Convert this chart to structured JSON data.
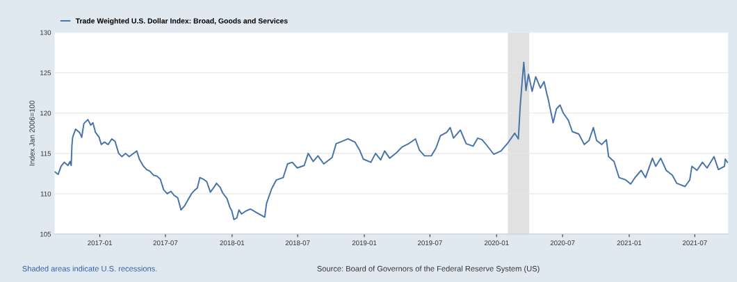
{
  "chart_data": {
    "type": "line",
    "ylabel": "Index Jan 2006=100",
    "ylim": [
      105,
      130
    ],
    "yticks": [
      105,
      110,
      115,
      120,
      125,
      130
    ],
    "xlim": [
      "2016-08-29",
      "2021-10-01"
    ],
    "xticks": [
      "2017-01",
      "2017-07",
      "2018-01",
      "2018-07",
      "2019-01",
      "2019-07",
      "2020-01",
      "2020-07",
      "2021-01",
      "2021-07"
    ],
    "grid": "y",
    "legend": "top left",
    "marker": "none",
    "line_style": "solid",
    "bands": [
      {
        "axis": "x",
        "from": "2020-02-01",
        "to": "2020-03-31",
        "color": "#e1e1e1"
      }
    ],
    "annotations": [
      "Shaded areas indicate U.S. recessions.",
      "Source: Board of Governors of the Federal Reserve System (US)"
    ],
    "series": [
      {
        "name": "Trade Weighted U.S. Dollar Index: Broad, Goods and Services",
        "color": "#4572a7",
        "x": [
          "2016-08-30",
          "2016-09-08",
          "2016-09-16",
          "2016-09-25",
          "2016-10-05",
          "2016-10-11",
          "2016-10-14",
          "2016-10-16",
          "2016-10-18",
          "2016-10-26",
          "2016-11-06",
          "2016-11-12",
          "2016-11-18",
          "2016-11-29",
          "2016-12-07",
          "2016-12-13",
          "2016-12-20",
          "2016-12-30",
          "2017-01-05",
          "2017-01-14",
          "2017-01-24",
          "2017-02-03",
          "2017-02-12",
          "2017-02-22",
          "2017-03-03",
          "2017-03-13",
          "2017-03-23",
          "2017-04-01",
          "2017-04-13",
          "2017-04-20",
          "2017-04-30",
          "2017-05-10",
          "2017-05-19",
          "2017-05-29",
          "2017-06-07",
          "2017-06-17",
          "2017-06-26",
          "2017-07-06",
          "2017-07-16",
          "2017-07-25",
          "2017-08-04",
          "2017-08-13",
          "2017-08-23",
          "2017-09-02",
          "2017-09-11",
          "2017-09-21",
          "2017-09-27",
          "2017-10-04",
          "2017-10-14",
          "2017-10-23",
          "2017-11-02",
          "2017-11-12",
          "2017-11-19",
          "2017-11-29",
          "2017-12-06",
          "2017-12-18",
          "2017-12-26",
          "2017-12-31",
          "2018-01-06",
          "2018-01-14",
          "2018-01-20",
          "2018-01-27",
          "2018-02-06",
          "2018-02-15",
          "2018-02-21",
          "2018-03-12",
          "2018-04-01",
          "2018-04-06",
          "2018-04-20",
          "2018-05-03",
          "2018-05-22",
          "2018-06-03",
          "2018-06-16",
          "2018-06-30",
          "2018-07-19",
          "2018-07-30",
          "2018-08-13",
          "2018-08-26",
          "2018-09-11",
          "2018-10-04",
          "2018-10-15",
          "2018-11-01",
          "2018-11-17",
          "2018-12-06",
          "2018-12-19",
          "2018-12-29",
          "2019-01-19",
          "2019-02-01",
          "2019-02-15",
          "2019-02-26",
          "2019-03-12",
          "2019-03-31",
          "2019-04-15",
          "2019-05-03",
          "2019-05-22",
          "2019-06-02",
          "2019-06-16",
          "2019-07-05",
          "2019-07-18",
          "2019-07-30",
          "2019-08-16",
          "2019-08-26",
          "2019-09-04",
          "2019-09-23",
          "2019-10-09",
          "2019-10-28",
          "2019-11-10",
          "2019-11-22",
          "2019-12-05",
          "2019-12-24",
          "2020-01-13",
          "2020-02-01",
          "2020-02-20",
          "2020-03-01",
          "2020-03-06",
          "2020-03-12",
          "2020-03-16",
          "2020-03-22",
          "2020-03-29",
          "2020-04-08",
          "2020-04-18",
          "2020-05-01",
          "2020-05-11",
          "2020-05-18",
          "2020-05-22",
          "2020-06-05",
          "2020-06-14",
          "2020-06-24",
          "2020-07-03",
          "2020-07-17",
          "2020-07-28",
          "2020-08-15",
          "2020-08-30",
          "2020-09-12",
          "2020-09-24",
          "2020-10-03",
          "2020-10-17",
          "2020-10-30",
          "2020-11-05",
          "2020-11-20",
          "2020-12-04",
          "2020-12-23",
          "2021-01-05",
          "2021-01-17",
          "2021-02-03",
          "2021-02-15",
          "2021-03-06",
          "2021-03-15",
          "2021-03-29",
          "2021-04-13",
          "2021-04-30",
          "2021-05-12",
          "2021-06-04",
          "2021-06-17",
          "2021-06-23",
          "2021-07-07",
          "2021-07-22",
          "2021-08-04",
          "2021-08-23",
          "2021-09-04",
          "2021-09-21",
          "2021-09-23",
          "2021-09-29"
        ],
        "values": [
          112.7,
          112.4,
          113.4,
          113.9,
          113.5,
          114.0,
          113.5,
          116.0,
          117.0,
          118.0,
          117.6,
          117.0,
          118.7,
          119.2,
          118.5,
          118.8,
          117.6,
          117.0,
          116.1,
          116.4,
          116.1,
          116.8,
          116.5,
          115.0,
          114.6,
          115.0,
          114.6,
          114.9,
          115.3,
          114.3,
          113.5,
          113.0,
          112.8,
          112.3,
          112.2,
          111.8,
          110.5,
          110.0,
          110.3,
          109.8,
          109.5,
          108.0,
          108.5,
          109.3,
          110.0,
          110.5,
          110.7,
          112.0,
          111.8,
          111.5,
          110.2,
          110.8,
          111.3,
          110.8,
          110.1,
          109.4,
          108.3,
          107.9,
          106.8,
          107.0,
          108.0,
          107.5,
          107.8,
          108.0,
          108.1,
          107.6,
          107.1,
          108.8,
          110.6,
          111.7,
          112.0,
          113.7,
          113.9,
          113.2,
          113.5,
          115.0,
          114.0,
          114.7,
          113.7,
          114.5,
          116.2,
          116.5,
          116.8,
          116.4,
          115.4,
          114.3,
          113.9,
          115.0,
          114.2,
          115.3,
          114.4,
          115.1,
          115.8,
          116.2,
          116.8,
          115.4,
          114.7,
          114.7,
          115.7,
          117.2,
          117.6,
          118.2,
          116.9,
          117.9,
          116.2,
          115.9,
          116.9,
          116.7,
          116.0,
          114.9,
          115.3,
          116.3,
          117.5,
          116.8,
          120.8,
          124.2,
          126.3,
          122.8,
          124.8,
          122.7,
          124.5,
          123.1,
          123.9,
          122.5,
          121.8,
          118.8,
          120.5,
          121.0,
          120.0,
          119.1,
          117.7,
          117.4,
          116.1,
          116.6,
          118.2,
          116.6,
          116.1,
          116.7,
          114.6,
          114.0,
          112.0,
          111.7,
          111.2,
          112.0,
          112.9,
          112.0,
          114.4,
          113.4,
          114.4,
          112.9,
          112.3,
          111.3,
          110.9,
          111.7,
          113.4,
          112.9,
          113.9,
          113.2,
          114.6,
          113.0,
          113.4,
          114.3,
          113.9
        ]
      }
    ]
  }
}
